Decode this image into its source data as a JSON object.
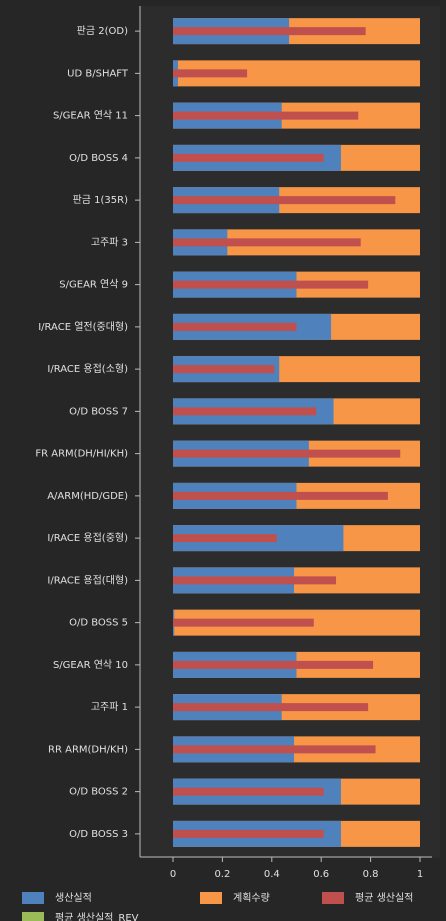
{
  "chart_data": {
    "type": "bar",
    "orientation": "horizontal",
    "categories": [
      "판금 2(OD)",
      "UD B/SHAFT",
      "S/GEAR 연삭 11",
      "O/D BOSS 4",
      "판금 1(35R)",
      "고주파 3",
      "S/GEAR 연삭 9",
      "I/RACE 열전(중대형)",
      "I/RACE 용접(소형)",
      "O/D BOSS 7",
      "FR ARM(DH/HI/KH)",
      "A/ARM(HD/GDE)",
      "I/RACE 용접(중형)",
      "I/RACE 용접(대형)",
      "O/D BOSS 5",
      "S/GEAR 연삭 10",
      "고주파 1",
      "RR ARM(DH/KH)",
      "O/D BOSS 2",
      "O/D BOSS 3"
    ],
    "series": [
      {
        "name": "계획수량",
        "color": "#f79646",
        "values": [
          1,
          1,
          1,
          1,
          1,
          1,
          1,
          1,
          1,
          1,
          1,
          1,
          1,
          1,
          1,
          1,
          1,
          1,
          1,
          1
        ]
      },
      {
        "name": "생산실적",
        "color": "#4f81bd",
        "values": [
          0.47,
          0.02,
          0.44,
          0.68,
          0.43,
          0.22,
          0.5,
          0.64,
          0.43,
          0.65,
          0.55,
          0.5,
          0.69,
          0.49,
          0.005,
          0.5,
          0.44,
          0.49,
          0.68,
          0.68
        ]
      },
      {
        "name": "평균 생산실적",
        "color": "#c0504d",
        "values": [
          0.78,
          0.3,
          0.75,
          0.61,
          0.9,
          0.76,
          0.79,
          0.5,
          0.41,
          0.58,
          0.92,
          0.87,
          0.42,
          0.66,
          0.57,
          0.81,
          0.79,
          0.82,
          0.61,
          0.61
        ]
      },
      {
        "name": "평균 생산실적_REV",
        "color": "#9bbb59",
        "values": [
          null,
          null,
          null,
          null,
          null,
          null,
          null,
          null,
          null,
          null,
          null,
          null,
          null,
          null,
          null,
          null,
          null,
          null,
          null,
          null
        ]
      }
    ],
    "xlim": [
      -0.2,
      1.05
    ],
    "xticks": [
      {
        "value": 0,
        "label": "0"
      },
      {
        "value": 0.2,
        "label": "0.2"
      },
      {
        "value": 0.4,
        "label": "0.4"
      },
      {
        "value": 0.6,
        "label": "0.6"
      },
      {
        "value": 0.8,
        "label": "0.8"
      },
      {
        "value": 1,
        "label": "1"
      }
    ]
  }
}
